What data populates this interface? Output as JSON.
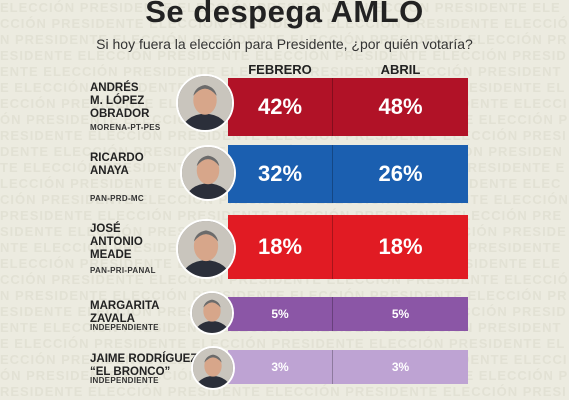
{
  "title": "Se despega AMLO",
  "subtitle": "Si hoy fuera la elección para Presidente, ¿por quién votaría?",
  "columns": [
    "FEBRERO",
    "ABRIL"
  ],
  "candidates": [
    {
      "name": "ANDRÉS M. LÓPEZ OBRADOR",
      "name_lines": [
        "ANDRÉS",
        "M. LÓPEZ",
        "OBRADOR"
      ],
      "party": "MORENA-PT-PES",
      "febrero": "42%",
      "abril": "48%",
      "color": "#b11227"
    },
    {
      "name": "RICARDO ANAYA",
      "name_lines": [
        "RICARDO",
        "ANAYA"
      ],
      "party": "PAN-PRD-MC",
      "febrero": "32%",
      "abril": "26%",
      "color": "#1b5fb0"
    },
    {
      "name": "JOSÉ ANTONIO MEADE",
      "name_lines": [
        "JOSÉ",
        "ANTONIO",
        "MEADE"
      ],
      "party": "PAN-PRI-PANAL",
      "febrero": "18%",
      "abril": "18%",
      "color": "#e11b23"
    },
    {
      "name": "MARGARITA ZAVALA",
      "name_lines": [
        "MARGARITA",
        "ZAVALA"
      ],
      "party": "INDEPENDIENTE",
      "febrero": "5%",
      "abril": "5%",
      "color": "#8b56a6"
    },
    {
      "name": "JAIME RODRÍGUEZ \"EL BRONCO\"",
      "name_lines": [
        "JAIME RODRÍGUEZ",
        "“EL BRONCO”"
      ],
      "party": "INDEPENDIENTE",
      "febrero": "3%",
      "abril": "3%",
      "color": "#bea3d3"
    }
  ],
  "chart_data": {
    "type": "table",
    "title": "Se despega AMLO",
    "subtitle": "Si hoy fuera la elección para Presidente, ¿por quién votaría?",
    "categories": [
      "ANDRÉS M. LÓPEZ OBRADOR",
      "RICARDO ANAYA",
      "JOSÉ ANTONIO MEADE",
      "MARGARITA ZAVALA",
      "JAIME RODRÍGUEZ \"EL BRONCO\""
    ],
    "series": [
      {
        "name": "FEBRERO",
        "values": [
          42,
          32,
          18,
          5,
          3
        ]
      },
      {
        "name": "ABRIL",
        "values": [
          48,
          26,
          18,
          5,
          3
        ]
      }
    ],
    "unit": "%"
  }
}
